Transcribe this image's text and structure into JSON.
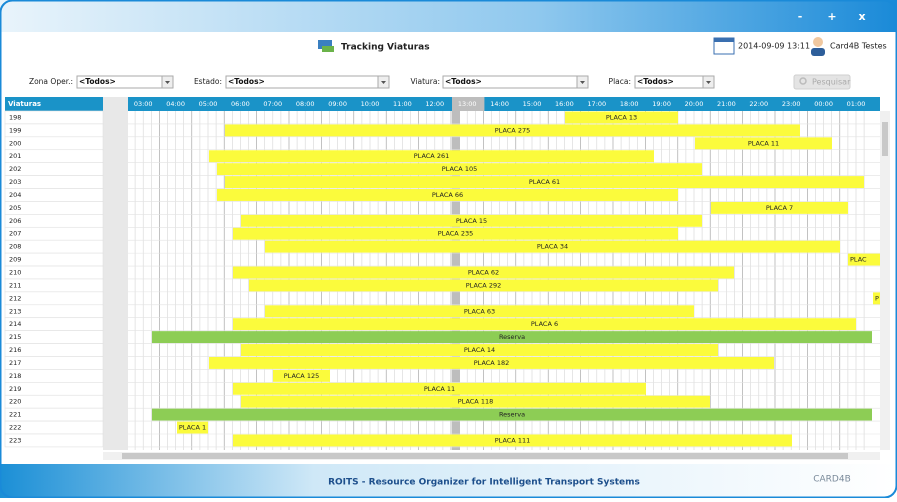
{
  "window_controls": [
    "-",
    "+",
    "x"
  ],
  "header": {
    "title": "Tracking Viaturas",
    "datetime": "2014-09-09 13:11",
    "user": "Card4B Testes"
  },
  "filters": [
    {
      "label": "Zona Oper.:",
      "value": "<Todos>"
    },
    {
      "label": "Estado:",
      "value": "<Todos>"
    },
    {
      "label": "Viatura:",
      "value": "<Todos>"
    },
    {
      "label": "Placa:",
      "value": "<Todos>"
    }
  ],
  "search_button": "Pesquisar",
  "grid": {
    "column_header": "Viaturas",
    "hours": [
      "03:00",
      "04:00",
      "05:00",
      "06:00",
      "07:00",
      "08:00",
      "09:00",
      "10:00",
      "11:00",
      "12:00",
      "13:00",
      "14:00",
      "15:00",
      "16:00",
      "17:00",
      "18:00",
      "19:00",
      "20:00",
      "21:00",
      "22:00",
      "23:00",
      "00:00",
      "01:00"
    ],
    "rows": [
      {
        "id": "198",
        "bars": [
          {
            "label": "PLACA 13"
          }
        ]
      },
      {
        "id": "199",
        "bars": [
          {
            "label": "PLACA 275"
          }
        ]
      },
      {
        "id": "200",
        "bars": [
          {
            "label": "PLACA 11"
          }
        ]
      },
      {
        "id": "201",
        "bars": [
          {
            "label": "PLACA 261"
          }
        ]
      },
      {
        "id": "202",
        "bars": [
          {
            "label": "PLACA 105"
          }
        ]
      },
      {
        "id": "203",
        "bars": [
          {
            "label": "PLACA 61"
          }
        ]
      },
      {
        "id": "204",
        "bars": [
          {
            "label": "PLACA 66"
          }
        ]
      },
      {
        "id": "205",
        "bars": [
          {
            "label": "PLACA 7"
          }
        ]
      },
      {
        "id": "206",
        "bars": [
          {
            "label": "PLACA 15"
          }
        ]
      },
      {
        "id": "207",
        "bars": [
          {
            "label": "PLACA 235"
          }
        ]
      },
      {
        "id": "208",
        "bars": [
          {
            "label": "PLACA 34"
          }
        ]
      },
      {
        "id": "209",
        "bars": [
          {
            "label": "PLAC"
          }
        ]
      },
      {
        "id": "210",
        "bars": [
          {
            "label": "PLACA 62"
          }
        ]
      },
      {
        "id": "211",
        "bars": [
          {
            "label": "PLACA 292"
          }
        ]
      },
      {
        "id": "212",
        "bars": [
          {
            "label": "P"
          }
        ]
      },
      {
        "id": "213",
        "bars": [
          {
            "label": "PLACA 63"
          }
        ]
      },
      {
        "id": "214",
        "bars": [
          {
            "label": "PLACA 6"
          }
        ]
      },
      {
        "id": "215",
        "bars": [
          {
            "label": "Reserva"
          }
        ]
      },
      {
        "id": "216",
        "bars": [
          {
            "label": "PLACA 14"
          }
        ]
      },
      {
        "id": "217",
        "bars": [
          {
            "label": "PLACA 182"
          }
        ]
      },
      {
        "id": "218",
        "bars": [
          {
            "label": "PLACA 125"
          }
        ]
      },
      {
        "id": "219",
        "bars": [
          {
            "label": "PLACA 11"
          }
        ]
      },
      {
        "id": "220",
        "bars": [
          {
            "label": "PLACA 118"
          }
        ]
      },
      {
        "id": "221",
        "bars": [
          {
            "label": "Reserva"
          }
        ]
      },
      {
        "id": "222",
        "bars": [
          {
            "label": "PLACA 1"
          }
        ]
      },
      {
        "id": "223",
        "bars": [
          {
            "label": "PLACA 111"
          }
        ]
      }
    ]
  },
  "footer": {
    "title": "ROITS - Resource Organizer for Intelligent Transport Systems",
    "logo": "CARD4B"
  }
}
